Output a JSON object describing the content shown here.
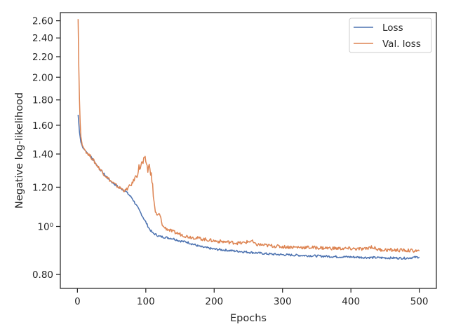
{
  "chart_data": {
    "type": "line",
    "title": "",
    "xlabel": "Epochs",
    "ylabel": "Negative log-likelihood",
    "xlim": [
      -25,
      525
    ],
    "ylim": [
      0.75,
      2.7
    ],
    "yscale": "log",
    "grid": false,
    "legend_position": "top-right",
    "x_ticks": [
      0,
      100,
      200,
      300,
      400,
      500
    ],
    "x_tick_labels": [
      "0",
      "100",
      "200",
      "300",
      "400",
      "500"
    ],
    "y_ticks": [
      0.8,
      1.0,
      1.2,
      1.4,
      1.6,
      1.8,
      2.0,
      2.2,
      2.4,
      2.6
    ],
    "y_tick_labels": [
      "0.80",
      "10⁰",
      "1.20",
      "1.40",
      "1.60",
      "1.80",
      "2.00",
      "2.20",
      "2.40",
      "2.60"
    ],
    "series": [
      {
        "name": "Loss",
        "color": "#4c72b0",
        "x": [
          1,
          3,
          5,
          8,
          12,
          20,
          30,
          40,
          50,
          60,
          70,
          75,
          80,
          90,
          100,
          105,
          110,
          120,
          130,
          140,
          150,
          160,
          170,
          180,
          200,
          220,
          240,
          260,
          280,
          300,
          320,
          340,
          360,
          380,
          400,
          420,
          440,
          460,
          480,
          500
        ],
        "y": [
          1.68,
          1.55,
          1.48,
          1.44,
          1.42,
          1.38,
          1.32,
          1.27,
          1.23,
          1.2,
          1.18,
          1.16,
          1.14,
          1.08,
          1.02,
          0.99,
          0.97,
          0.955,
          0.95,
          0.945,
          0.935,
          0.93,
          0.92,
          0.91,
          0.9,
          0.895,
          0.89,
          0.885,
          0.88,
          0.877,
          0.875,
          0.873,
          0.871,
          0.869,
          0.868,
          0.866,
          0.865,
          0.864,
          0.863,
          0.868
        ]
      },
      {
        "name": "Val. loss",
        "color": "#dd8452",
        "x": [
          1,
          2,
          3,
          4,
          5,
          7,
          9,
          12,
          20,
          30,
          40,
          50,
          60,
          70,
          75,
          80,
          85,
          90,
          95,
          100,
          103,
          106,
          110,
          113,
          116,
          120,
          125,
          130,
          140,
          150,
          160,
          180,
          200,
          220,
          240,
          255,
          260,
          280,
          300,
          320,
          340,
          360,
          380,
          400,
          420,
          430,
          440,
          460,
          480,
          500
        ],
        "y": [
          2.62,
          2.1,
          1.8,
          1.62,
          1.52,
          1.46,
          1.44,
          1.42,
          1.38,
          1.32,
          1.27,
          1.23,
          1.2,
          1.18,
          1.2,
          1.22,
          1.26,
          1.31,
          1.34,
          1.36,
          1.3,
          1.33,
          1.2,
          1.09,
          1.05,
          1.06,
          1.0,
          0.99,
          0.975,
          0.965,
          0.955,
          0.945,
          0.935,
          0.93,
          0.925,
          0.935,
          0.92,
          0.915,
          0.91,
          0.908,
          0.907,
          0.905,
          0.903,
          0.902,
          0.9,
          0.91,
          0.898,
          0.896,
          0.895,
          0.892
        ]
      }
    ]
  }
}
